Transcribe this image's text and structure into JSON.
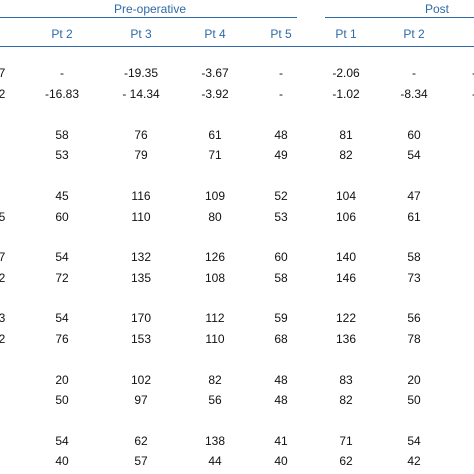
{
  "table": {
    "groups": [
      {
        "label": "Pre-operative"
      },
      {
        "label": "Post"
      }
    ],
    "columns": [
      "",
      "Pt 2",
      "Pt 3",
      "Pt 4",
      "Pt 5",
      "Pt 1",
      "Pt 2",
      ""
    ],
    "rows": [
      {
        "cells": [
          "7",
          "-",
          "-19.35",
          "-3.67",
          "-",
          "-2.06",
          "-",
          "-"
        ]
      },
      {
        "cells": [
          "2",
          "-16.83",
          "- 14.34",
          "-3.92",
          "-",
          "-1.02",
          "-8.34",
          "-"
        ]
      },
      {
        "cells": [
          "",
          "58",
          "76",
          "61",
          "48",
          "81",
          "60",
          ""
        ]
      },
      {
        "cells": [
          "",
          "53",
          "79",
          "71",
          "49",
          "82",
          "54",
          ""
        ]
      },
      {
        "cells": [
          "",
          "45",
          "116",
          "109",
          "52",
          "104",
          "47",
          ""
        ]
      },
      {
        "cells": [
          "5",
          "60",
          "110",
          "80",
          "53",
          "106",
          "61",
          ""
        ]
      },
      {
        "cells": [
          "7",
          "54",
          "132",
          "126",
          "60",
          "140",
          "58",
          ""
        ]
      },
      {
        "cells": [
          "2",
          "72",
          "135",
          "108",
          "58",
          "146",
          "73",
          ""
        ]
      },
      {
        "cells": [
          "3",
          "54",
          "170",
          "112",
          "59",
          "122",
          "56",
          ""
        ]
      },
      {
        "cells": [
          "2",
          "76",
          "153",
          "110",
          "68",
          "136",
          "78",
          ""
        ]
      },
      {
        "cells": [
          "",
          "20",
          "102",
          "82",
          "48",
          "83",
          "20",
          ""
        ]
      },
      {
        "cells": [
          "",
          "50",
          "97",
          "56",
          "48",
          "82",
          "50",
          ""
        ]
      },
      {
        "cells": [
          "",
          "54",
          "62",
          "138",
          "41",
          "71",
          "54",
          ""
        ]
      },
      {
        "cells": [
          "",
          "40",
          "57",
          "44",
          "40",
          "62",
          "42",
          ""
        ]
      }
    ]
  }
}
